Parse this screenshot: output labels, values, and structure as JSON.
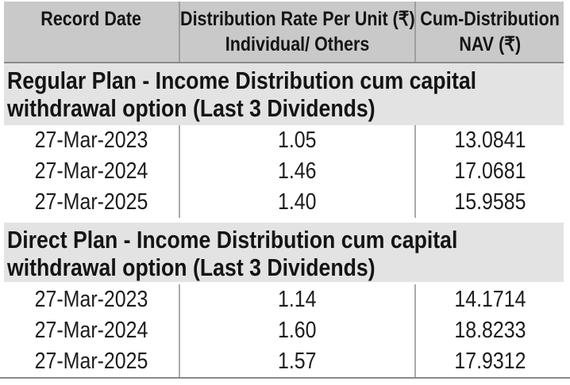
{
  "colors": {
    "header_bg": "#c9c9c9",
    "section_bg": "#e3e3e3",
    "header_divider": "#9e9e9e",
    "row_divider": "#ababab",
    "rule": "#8a8a8a",
    "text": "#141414"
  },
  "header": {
    "record_date": "Record Date",
    "rate_line1": "Distribution Rate Per Unit  (₹)",
    "rate_line2": "Individual/ Others",
    "nav_line1": "Cum-Distribution",
    "nav_line2": "NAV (₹)"
  },
  "sections": [
    {
      "title": "Regular Plan - Income Distribution cum capital withdrawal option (Last 3 Dividends)",
      "title_lines": [
        "Regular Plan - Income Distribution cum capital",
        "withdrawal option (Last 3 Dividends)"
      ],
      "rows": [
        {
          "date": "27-Mar-2023",
          "rate": "1.05",
          "nav": "13.0841"
        },
        {
          "date": "27-Mar-2024",
          "rate": "1.46",
          "nav": "17.0681"
        },
        {
          "date": "27-Mar-2025",
          "rate": "1.40",
          "nav": "15.9585"
        }
      ]
    },
    {
      "title": "Direct Plan - Income Distribution cum capital withdrawal option (Last 3 Dividends)",
      "title_lines": [
        "Direct Plan - Income Distribution cum capital",
        "withdrawal option (Last 3 Dividends)"
      ],
      "rows": [
        {
          "date": "27-Mar-2023",
          "rate": "1.14",
          "nav": "14.1714"
        },
        {
          "date": "27-Mar-2024",
          "rate": "1.60",
          "nav": "18.8233"
        },
        {
          "date": "27-Mar-2025",
          "rate": "1.57",
          "nav": "17.9312"
        }
      ]
    }
  ]
}
